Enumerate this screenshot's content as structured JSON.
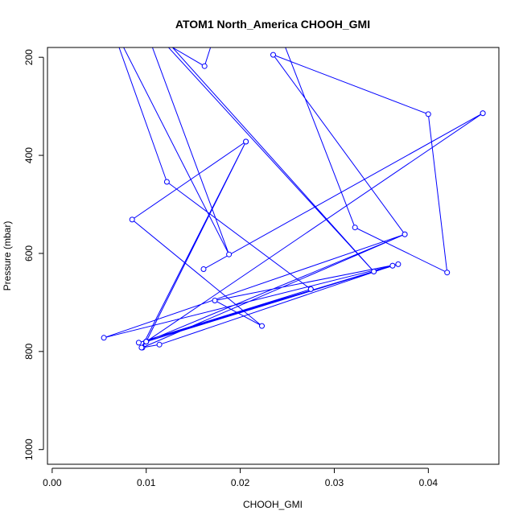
{
  "chart_data": {
    "type": "line",
    "title": "ATOM1 North_America CHOOH_GMI",
    "xlabel": "CHOOH_GMI",
    "ylabel": "Pressure (mbar)",
    "xlim": [
      -0.0005,
      0.0475
    ],
    "ylim": [
      1030,
      180
    ],
    "y_reversed": true,
    "x_ticks": [
      0.0,
      0.01,
      0.02,
      0.03,
      0.04
    ],
    "x_tick_labels": [
      "0.00",
      "0.01",
      "0.02",
      "0.03",
      "0.04"
    ],
    "y_ticks": [
      200,
      400,
      600,
      800,
      1000
    ],
    "y_tick_labels": [
      "200",
      "400",
      "600",
      "800",
      "1000"
    ],
    "grid": false,
    "series": [
      {
        "color": "#0000ff",
        "marker": "open-circle",
        "points": [
          {
            "x": 0.0175,
            "y": 140,
            "marker": false
          },
          {
            "x": 0.0162,
            "y": 218
          },
          {
            "x": 0.0128,
            "y": 180,
            "marker": false
          },
          {
            "x": 0.0342,
            "y": 637
          },
          {
            "x": 0.0095,
            "y": 120,
            "marker": false
          },
          {
            "x": 0.0188,
            "y": 602
          },
          {
            "x": 0.006,
            "y": 120,
            "marker": false
          },
          {
            "x": 0.0122,
            "y": 454
          },
          {
            "x": 0.0275,
            "y": 673
          },
          {
            "x": 0.01,
            "y": 780
          },
          {
            "x": 0.0206,
            "y": 372
          },
          {
            "x": 0.0085,
            "y": 531
          },
          {
            "x": 0.0223,
            "y": 748
          },
          {
            "x": 0.0173,
            "y": 696
          },
          {
            "x": 0.0368,
            "y": 622
          },
          {
            "x": 0.01,
            "y": 780
          },
          {
            "x": 0.0458,
            "y": 314
          },
          {
            "x": 0.0161,
            "y": 632
          },
          {
            "x": 0.0458,
            "y": 314
          },
          {
            "x": 0.01,
            "y": 780
          },
          {
            "x": 0.0362,
            "y": 625
          },
          {
            "x": 0.0114,
            "y": 786
          },
          {
            "x": 0.0096,
            "y": 792
          },
          {
            "x": 0.0375,
            "y": 561
          },
          {
            "x": 0.0055,
            "y": 772
          },
          {
            "x": 0.0362,
            "y": 625
          },
          {
            "x": 0.0092,
            "y": 782
          },
          {
            "x": 0.0275,
            "y": 673
          },
          {
            "x": 0.01,
            "y": 780
          },
          {
            "x": 0.0206,
            "y": 372
          },
          {
            "x": 0.0095,
            "y": 792
          },
          {
            "x": 0.01,
            "y": 780
          },
          {
            "x": 0.0375,
            "y": 561
          },
          {
            "x": 0.0235,
            "y": 195
          },
          {
            "x": 0.04,
            "y": 316
          },
          {
            "x": 0.042,
            "y": 639
          },
          {
            "x": 0.0322,
            "y": 547
          },
          {
            "x": 0.024,
            "y": 140,
            "marker": false
          }
        ]
      }
    ]
  }
}
